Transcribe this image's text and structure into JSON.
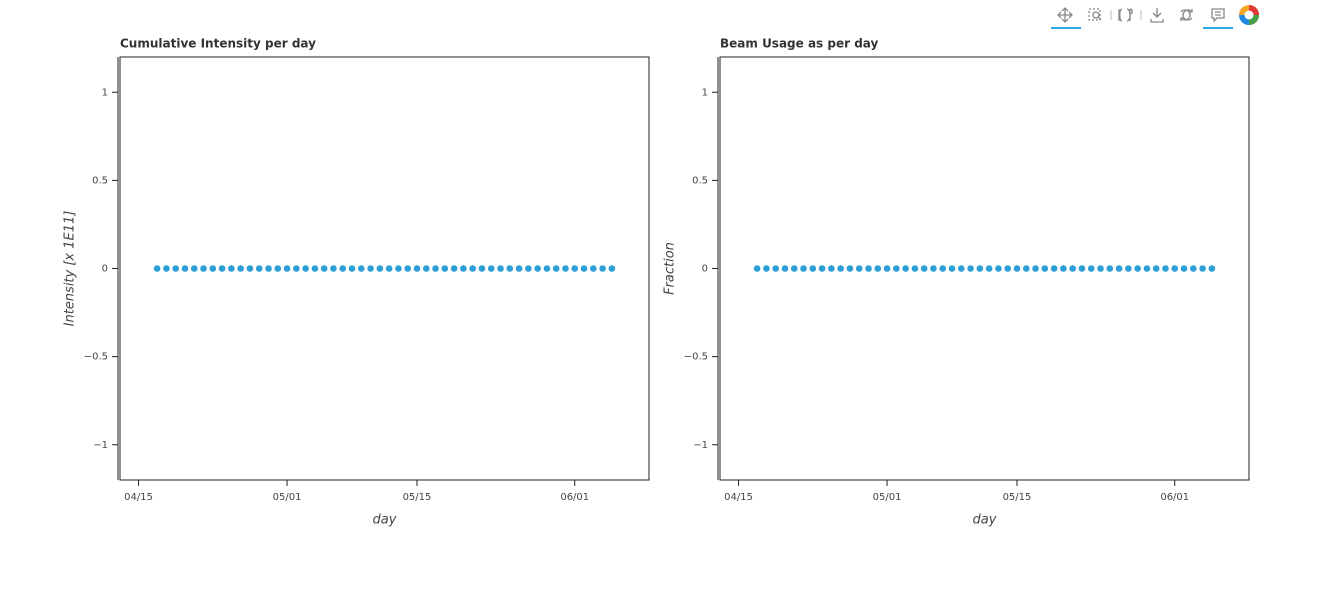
{
  "chart_data": [
    {
      "type": "scatter",
      "title": "Cumulative Intensity per day",
      "x_label": "day",
      "y_label": "Intensity [x 1E11]",
      "x": [
        "04/17",
        "04/18",
        "04/19",
        "04/20",
        "04/21",
        "04/22",
        "04/23",
        "04/24",
        "04/25",
        "04/26",
        "04/27",
        "04/28",
        "04/29",
        "04/30",
        "05/01",
        "05/02",
        "05/03",
        "05/04",
        "05/05",
        "05/06",
        "05/07",
        "05/08",
        "05/09",
        "05/10",
        "05/11",
        "05/12",
        "05/13",
        "05/14",
        "05/15",
        "05/16",
        "05/17",
        "05/18",
        "05/19",
        "05/20",
        "05/21",
        "05/22",
        "05/23",
        "05/24",
        "05/25",
        "05/26",
        "05/27",
        "05/28",
        "05/29",
        "05/30",
        "05/31",
        "06/01",
        "06/02",
        "06/03",
        "06/04",
        "06/05"
      ],
      "values": [
        0,
        0,
        0,
        0,
        0,
        0,
        0,
        0,
        0,
        0,
        0,
        0,
        0,
        0,
        0,
        0,
        0,
        0,
        0,
        0,
        0,
        0,
        0,
        0,
        0,
        0,
        0,
        0,
        0,
        0,
        0,
        0,
        0,
        0,
        0,
        0,
        0,
        0,
        0,
        0,
        0,
        0,
        0,
        0,
        0,
        0,
        0,
        0,
        0,
        0
      ],
      "color": "#2c9fd6",
      "xlim": [
        "04/13",
        "06/09"
      ],
      "xticks": [
        "04/15",
        "05/01",
        "05/15",
        "06/01"
      ],
      "ylim": [
        -1.2,
        1.2
      ],
      "yticks": [
        {
          "value": -1,
          "label": "−1"
        },
        {
          "value": -0.5,
          "label": "−0.5"
        },
        0,
        0.5,
        1
      ]
    },
    {
      "type": "scatter",
      "title": "Beam Usage as per day",
      "x_label": "day",
      "y_label": "Fraction",
      "x": [
        "04/17",
        "04/18",
        "04/19",
        "04/20",
        "04/21",
        "04/22",
        "04/23",
        "04/24",
        "04/25",
        "04/26",
        "04/27",
        "04/28",
        "04/29",
        "04/30",
        "05/01",
        "05/02",
        "05/03",
        "05/04",
        "05/05",
        "05/06",
        "05/07",
        "05/08",
        "05/09",
        "05/10",
        "05/11",
        "05/12",
        "05/13",
        "05/14",
        "05/15",
        "05/16",
        "05/17",
        "05/18",
        "05/19",
        "05/20",
        "05/21",
        "05/22",
        "05/23",
        "05/24",
        "05/25",
        "05/26",
        "05/27",
        "05/28",
        "05/29",
        "05/30",
        "05/31",
        "06/01",
        "06/02",
        "06/03",
        "06/04",
        "06/05"
      ],
      "values": [
        0,
        0,
        0,
        0,
        0,
        0,
        0,
        0,
        0,
        0,
        0,
        0,
        0,
        0,
        0,
        0,
        0,
        0,
        0,
        0,
        0,
        0,
        0,
        0,
        0,
        0,
        0,
        0,
        0,
        0,
        0,
        0,
        0,
        0,
        0,
        0,
        0,
        0,
        0,
        0,
        0,
        0,
        0,
        0,
        0,
        0,
        0,
        0,
        0,
        0
      ],
      "color": "#2c9fd6",
      "xlim": [
        "04/13",
        "06/09"
      ],
      "xticks": [
        "04/15",
        "05/01",
        "05/15",
        "06/01"
      ],
      "ylim": [
        -1.2,
        1.2
      ],
      "yticks": [
        {
          "value": -1,
          "label": "−1"
        },
        {
          "value": -0.5,
          "label": "−0.5"
        },
        0,
        0.5,
        1
      ]
    }
  ]
}
